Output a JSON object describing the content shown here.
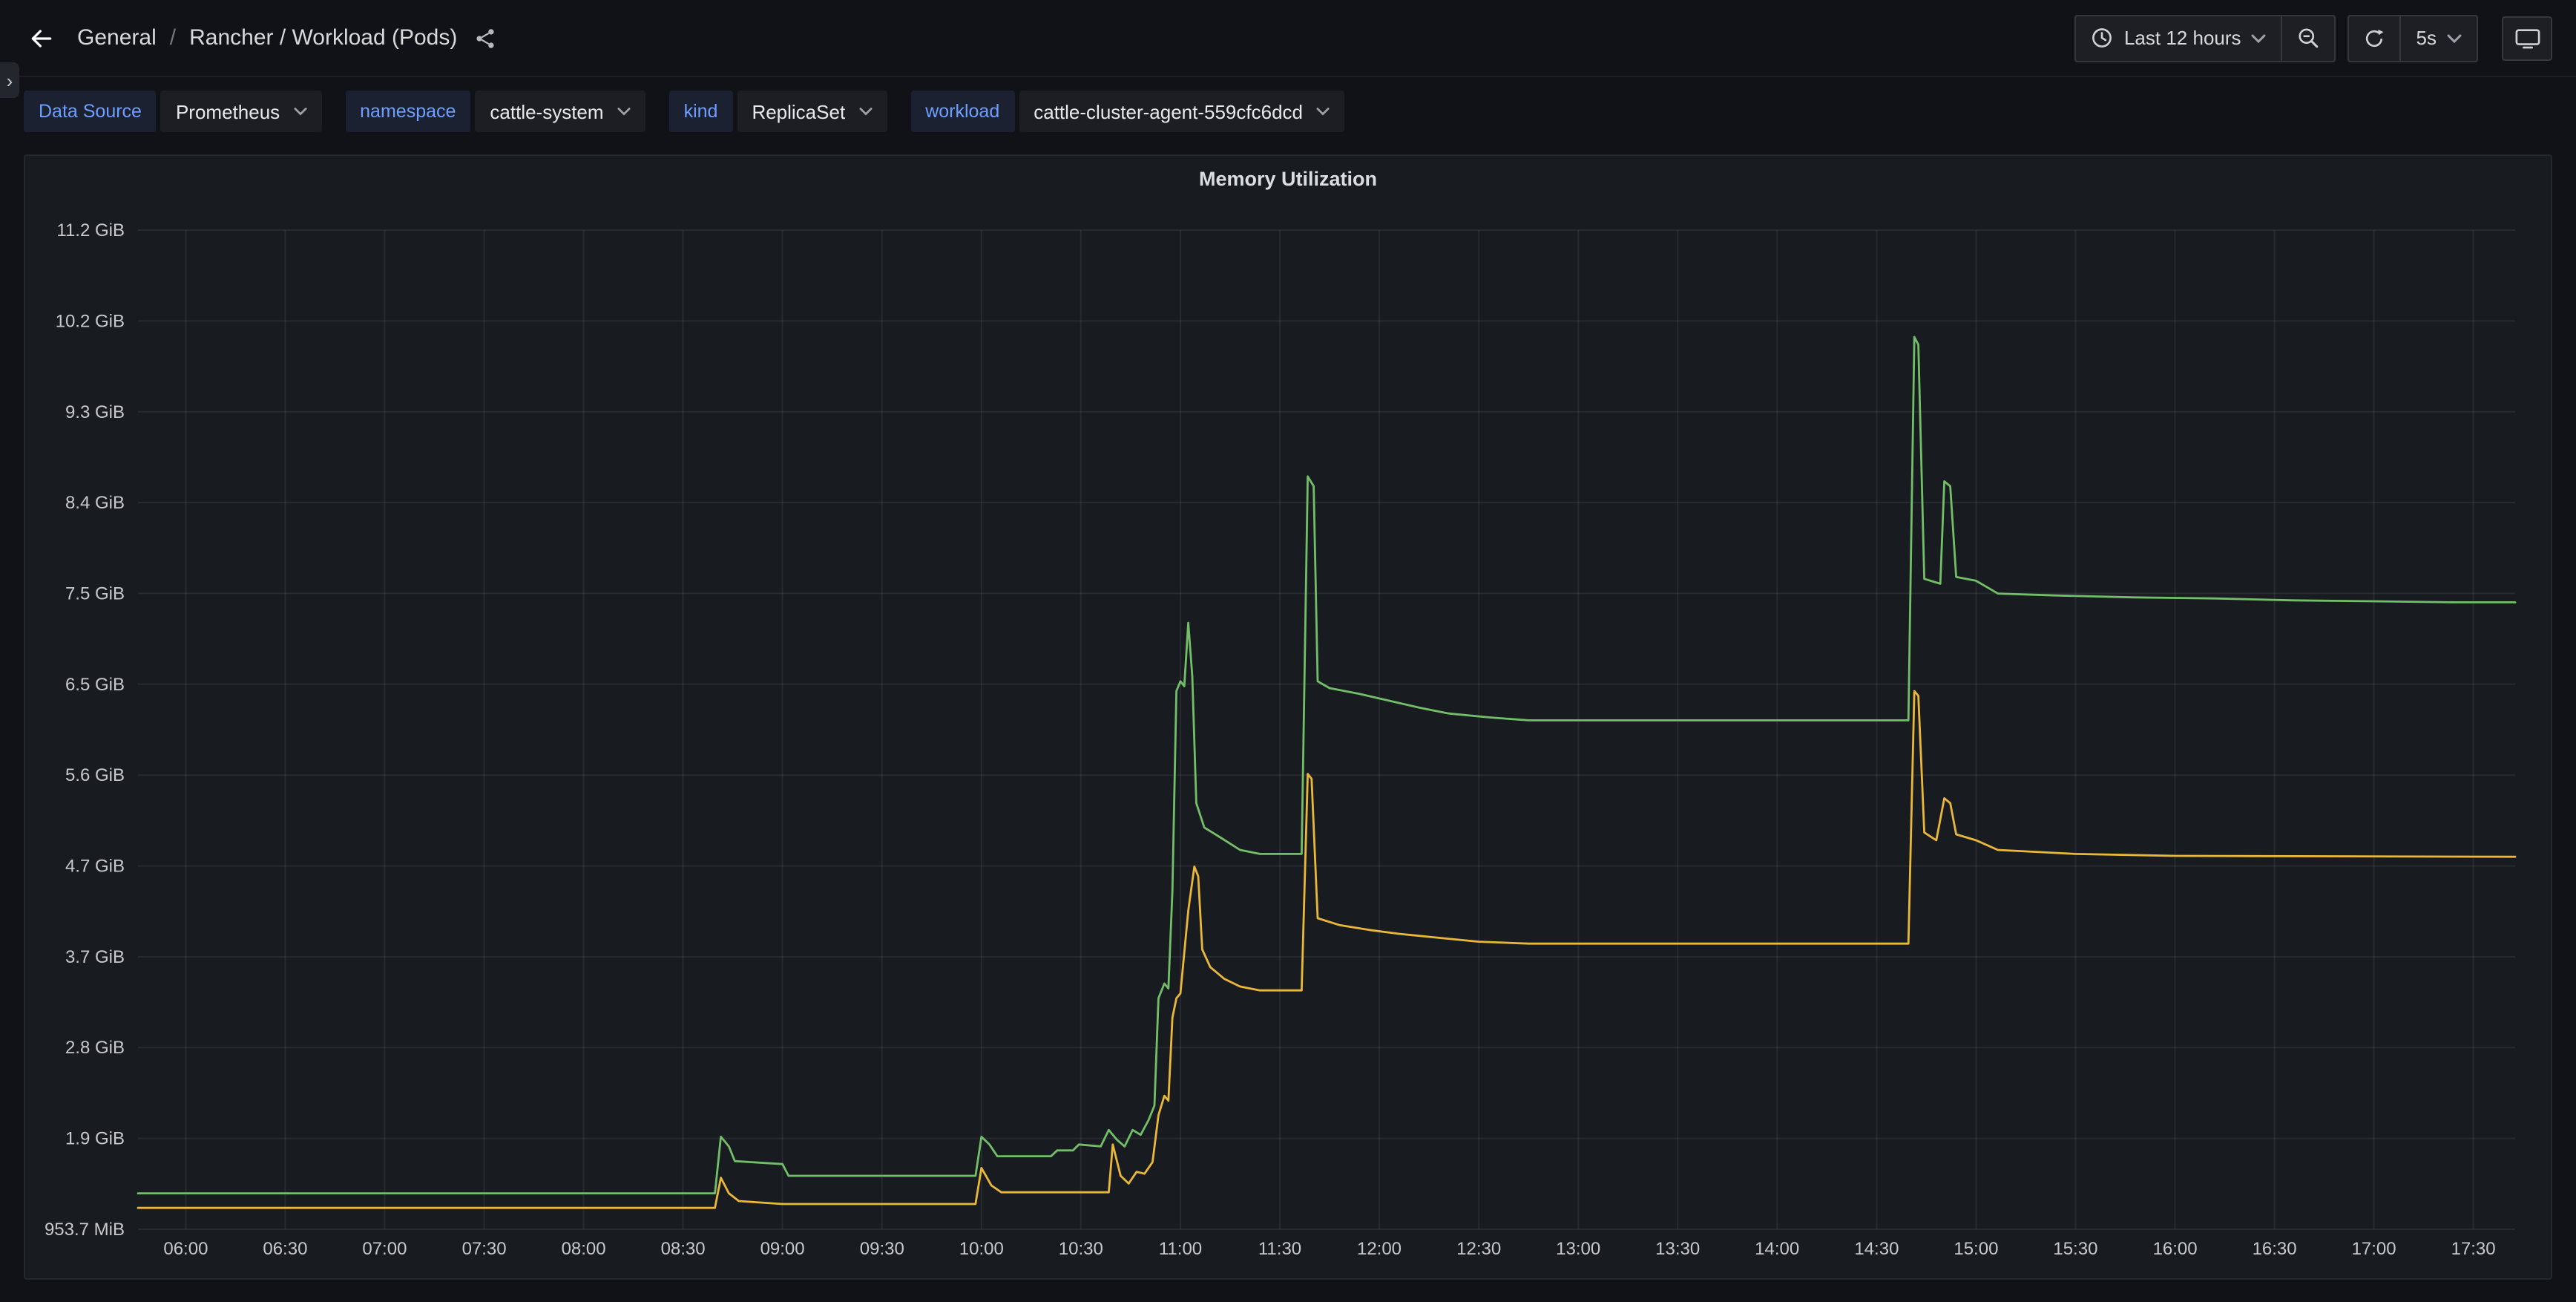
{
  "nav": {
    "breadcrumb": {
      "root": "General",
      "separator": "/",
      "dashboard": "Rancher / Workload (Pods)"
    },
    "time_range": "Last 12 hours",
    "refresh_interval": "5s"
  },
  "icons": {
    "expand_arrow": "›",
    "names": [
      "back-arrow-icon",
      "share-alt-icon",
      "clock-icon",
      "chevron-down-icon",
      "zoom-out-icon",
      "refresh-icon",
      "monitor-icon"
    ]
  },
  "variables": [
    {
      "label": "Data Source",
      "value": "Prometheus"
    },
    {
      "label": "namespace",
      "value": "cattle-system"
    },
    {
      "label": "kind",
      "value": "ReplicaSet"
    },
    {
      "label": "workload",
      "value": "cattle-cluster-agent-559cfc6dcd"
    }
  ],
  "panel": {
    "title": "Memory Utilization"
  },
  "colors": {
    "accent_blue": "#6e9fff",
    "series_green": "#73bf69",
    "series_yellow": "#eab839",
    "page_bg": "#111217",
    "panel_bg": "#181b1f"
  },
  "chart_data": {
    "type": "line",
    "title": "Memory Utilization",
    "xlabel": "time of day (HH:MM)",
    "ylabel": "memory",
    "y_unit": "GiB",
    "grid": true,
    "legend": "none",
    "x_range_hours": [
      5.76,
      17.71
    ],
    "y_range": [
      0.9313,
      11.1759
    ],
    "x_ticks": [
      {
        "h": 6.0,
        "label": "06:00"
      },
      {
        "h": 6.5,
        "label": "06:30"
      },
      {
        "h": 7.0,
        "label": "07:00"
      },
      {
        "h": 7.5,
        "label": "07:30"
      },
      {
        "h": 8.0,
        "label": "08:00"
      },
      {
        "h": 8.5,
        "label": "08:30"
      },
      {
        "h": 9.0,
        "label": "09:00"
      },
      {
        "h": 9.5,
        "label": "09:30"
      },
      {
        "h": 10.0,
        "label": "10:00"
      },
      {
        "h": 10.5,
        "label": "10:30"
      },
      {
        "h": 11.0,
        "label": "11:00"
      },
      {
        "h": 11.5,
        "label": "11:30"
      },
      {
        "h": 12.0,
        "label": "12:00"
      },
      {
        "h": 12.5,
        "label": "12:30"
      },
      {
        "h": 13.0,
        "label": "13:00"
      },
      {
        "h": 13.5,
        "label": "13:30"
      },
      {
        "h": 14.0,
        "label": "14:00"
      },
      {
        "h": 14.5,
        "label": "14:30"
      },
      {
        "h": 15.0,
        "label": "15:00"
      },
      {
        "h": 15.5,
        "label": "15:30"
      },
      {
        "h": 16.0,
        "label": "16:00"
      },
      {
        "h": 16.5,
        "label": "16:30"
      },
      {
        "h": 17.0,
        "label": "17:00"
      },
      {
        "h": 17.5,
        "label": "17:30"
      }
    ],
    "y_ticks": [
      {
        "v": 0.9313,
        "label": "953.7 MiB"
      },
      {
        "v": 1.8626,
        "label": "1.9 GiB"
      },
      {
        "v": 2.794,
        "label": "2.8 GiB"
      },
      {
        "v": 3.7253,
        "label": "3.7 GiB"
      },
      {
        "v": 4.6566,
        "label": "4.7 GiB"
      },
      {
        "v": 5.5879,
        "label": "5.6 GiB"
      },
      {
        "v": 6.5193,
        "label": "6.5 GiB"
      },
      {
        "v": 7.4506,
        "label": "7.5 GiB"
      },
      {
        "v": 8.3819,
        "label": "8.4 GiB"
      },
      {
        "v": 9.3132,
        "label": "9.3 GiB"
      },
      {
        "v": 10.2445,
        "label": "10.2 GiB"
      },
      {
        "v": 11.1759,
        "label": "11.2 GiB"
      }
    ],
    "series": [
      {
        "name": "green-series",
        "color": "#73bf69",
        "points": [
          [
            5.76,
            1.3
          ],
          [
            8.66,
            1.3
          ],
          [
            8.69,
            1.88
          ],
          [
            8.73,
            1.78
          ],
          [
            8.76,
            1.63
          ],
          [
            9.0,
            1.6
          ],
          [
            9.03,
            1.48
          ],
          [
            9.97,
            1.48
          ],
          [
            10.0,
            1.88
          ],
          [
            10.04,
            1.8
          ],
          [
            10.08,
            1.68
          ],
          [
            10.35,
            1.68
          ],
          [
            10.38,
            1.74
          ],
          [
            10.46,
            1.74
          ],
          [
            10.49,
            1.8
          ],
          [
            10.6,
            1.78
          ],
          [
            10.64,
            1.95
          ],
          [
            10.68,
            1.85
          ],
          [
            10.72,
            1.78
          ],
          [
            10.76,
            1.95
          ],
          [
            10.8,
            1.9
          ],
          [
            10.84,
            2.05
          ],
          [
            10.87,
            2.2
          ],
          [
            10.89,
            3.3
          ],
          [
            10.92,
            3.45
          ],
          [
            10.94,
            3.4
          ],
          [
            10.96,
            4.4
          ],
          [
            10.98,
            6.45
          ],
          [
            11.0,
            6.55
          ],
          [
            11.02,
            6.5
          ],
          [
            11.04,
            7.15
          ],
          [
            11.06,
            6.6
          ],
          [
            11.08,
            5.3
          ],
          [
            11.12,
            5.05
          ],
          [
            11.2,
            4.95
          ],
          [
            11.3,
            4.82
          ],
          [
            11.4,
            4.78
          ],
          [
            11.61,
            4.78
          ],
          [
            11.64,
            8.65
          ],
          [
            11.67,
            8.55
          ],
          [
            11.69,
            6.55
          ],
          [
            11.75,
            6.48
          ],
          [
            11.9,
            6.42
          ],
          [
            12.05,
            6.35
          ],
          [
            12.2,
            6.28
          ],
          [
            12.35,
            6.22
          ],
          [
            12.55,
            6.18
          ],
          [
            12.75,
            6.15
          ],
          [
            14.66,
            6.15
          ],
          [
            14.69,
            10.08
          ],
          [
            14.71,
            10.0
          ],
          [
            14.74,
            7.6
          ],
          [
            14.82,
            7.55
          ],
          [
            14.84,
            8.6
          ],
          [
            14.87,
            8.55
          ],
          [
            14.9,
            7.62
          ],
          [
            15.0,
            7.58
          ],
          [
            15.11,
            7.45
          ],
          [
            15.4,
            7.43
          ],
          [
            15.8,
            7.41
          ],
          [
            16.2,
            7.4
          ],
          [
            16.6,
            7.38
          ],
          [
            17.0,
            7.37
          ],
          [
            17.4,
            7.36
          ],
          [
            17.71,
            7.36
          ]
        ]
      },
      {
        "name": "yellow-series",
        "color": "#eab839",
        "points": [
          [
            5.76,
            1.15
          ],
          [
            8.66,
            1.15
          ],
          [
            8.69,
            1.46
          ],
          [
            8.73,
            1.3
          ],
          [
            8.78,
            1.22
          ],
          [
            9.0,
            1.19
          ],
          [
            9.97,
            1.19
          ],
          [
            10.0,
            1.56
          ],
          [
            10.05,
            1.38
          ],
          [
            10.1,
            1.31
          ],
          [
            10.64,
            1.31
          ],
          [
            10.66,
            1.8
          ],
          [
            10.7,
            1.48
          ],
          [
            10.74,
            1.4
          ],
          [
            10.78,
            1.52
          ],
          [
            10.82,
            1.5
          ],
          [
            10.86,
            1.62
          ],
          [
            10.89,
            2.1
          ],
          [
            10.92,
            2.3
          ],
          [
            10.94,
            2.25
          ],
          [
            10.96,
            3.1
          ],
          [
            10.98,
            3.3
          ],
          [
            11.0,
            3.35
          ],
          [
            11.04,
            4.2
          ],
          [
            11.07,
            4.65
          ],
          [
            11.09,
            4.55
          ],
          [
            11.11,
            3.8
          ],
          [
            11.15,
            3.62
          ],
          [
            11.22,
            3.5
          ],
          [
            11.3,
            3.42
          ],
          [
            11.4,
            3.38
          ],
          [
            11.61,
            3.38
          ],
          [
            11.64,
            5.6
          ],
          [
            11.66,
            5.55
          ],
          [
            11.69,
            4.12
          ],
          [
            11.8,
            4.05
          ],
          [
            11.95,
            4.0
          ],
          [
            12.1,
            3.96
          ],
          [
            12.3,
            3.92
          ],
          [
            12.5,
            3.88
          ],
          [
            12.75,
            3.86
          ],
          [
            14.66,
            3.86
          ],
          [
            14.69,
            6.45
          ],
          [
            14.71,
            6.4
          ],
          [
            14.74,
            5.0
          ],
          [
            14.8,
            4.92
          ],
          [
            14.84,
            5.35
          ],
          [
            14.87,
            5.3
          ],
          [
            14.9,
            4.98
          ],
          [
            15.0,
            4.92
          ],
          [
            15.11,
            4.82
          ],
          [
            15.5,
            4.78
          ],
          [
            16.0,
            4.76
          ],
          [
            17.71,
            4.75
          ]
        ]
      }
    ]
  }
}
